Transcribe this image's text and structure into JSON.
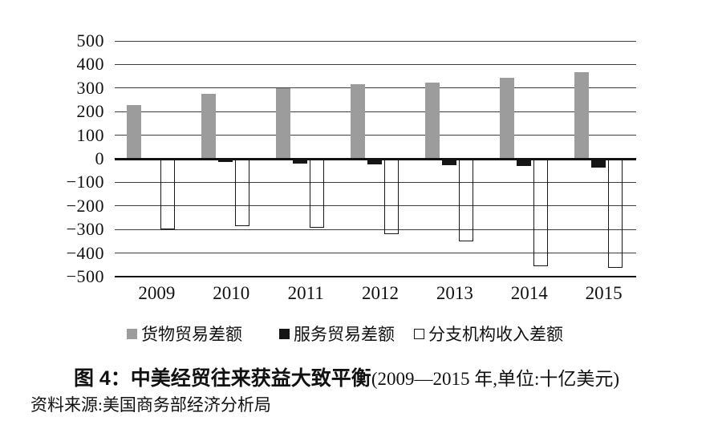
{
  "title": {
    "bold": "图 4：中美经贸往来获益大致平衡",
    "paren": "(2009—2015 年,单位:十亿美元)"
  },
  "source": "资料来源:美国商务部经济分析局",
  "chart_data": {
    "type": "bar",
    "title": "中美经贸往来获益大致平衡",
    "subtitle": "2009—2015 年,单位:十亿美元",
    "categories": [
      "2009",
      "2010",
      "2011",
      "2012",
      "2013",
      "2014",
      "2015"
    ],
    "series": [
      {
        "key": "goods",
        "name": "货物贸易差额",
        "color": "#9c9c9c",
        "values": [
          228,
          275,
          298,
          316,
          322,
          344,
          368
        ]
      },
      {
        "key": "services",
        "name": "服务贸易差额",
        "color": "#161616",
        "values": [
          -8,
          -14,
          -20,
          -23,
          -27,
          -31,
          -36
        ]
      },
      {
        "key": "affiliates",
        "name": "分支机构收入差额",
        "color": "#ffffff",
        "values": [
          -300,
          -286,
          -292,
          -319,
          -350,
          -455,
          -461
        ]
      }
    ],
    "ylim": [
      -500,
      500
    ],
    "yticks": [
      "500",
      "400",
      "300",
      "200",
      "100",
      "0",
      "−100",
      "−200",
      "−300",
      "−400",
      "−500"
    ],
    "ytick_values": [
      500,
      400,
      300,
      200,
      100,
      0,
      -100,
      -200,
      -300,
      -400,
      -500
    ],
    "xlabel": "",
    "ylabel": "",
    "grid": true,
    "legend_position": "bottom",
    "unit": "十亿美元"
  }
}
